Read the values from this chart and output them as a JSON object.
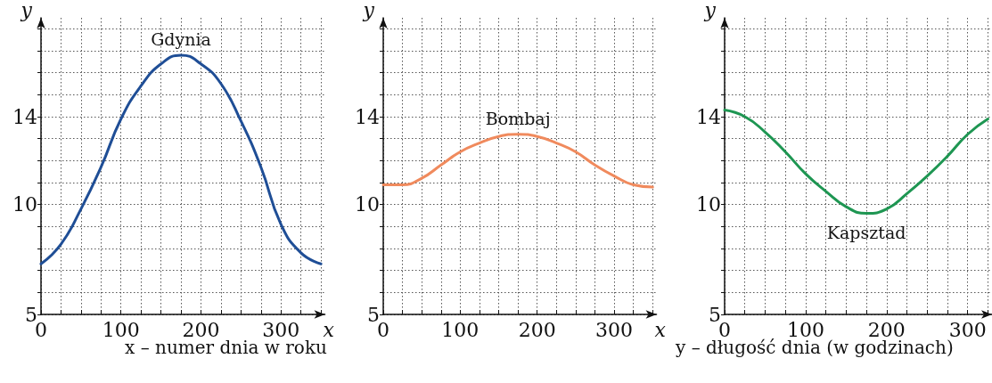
{
  "chart_data": [
    {
      "type": "line",
      "xlabel": "x",
      "ylabel": "y",
      "x": [
        0,
        25,
        50,
        75,
        100,
        125,
        150,
        175,
        200,
        225,
        250,
        275,
        300,
        325,
        350
      ],
      "series": [
        {
          "name": "Gdynia",
          "color": "#1f4e96",
          "values": [
            7.3,
            8.2,
            9.8,
            11.7,
            13.9,
            15.4,
            16.4,
            16.8,
            16.4,
            15.5,
            13.8,
            11.7,
            9.1,
            7.8,
            7.3
          ]
        }
      ],
      "xlim": [
        0,
        355
      ],
      "xticks": [
        0,
        {
          "value": 25,
          "label": null
        },
        {
          "value": 50,
          "label": null
        },
        {
          "value": 75,
          "label": null
        },
        100,
        {
          "value": 125,
          "label": null
        },
        {
          "value": 150,
          "label": null
        },
        {
          "value": 175,
          "label": null
        },
        200,
        {
          "value": 225,
          "label": null
        },
        {
          "value": 250,
          "label": null
        },
        {
          "value": 275,
          "label": null
        },
        300,
        {
          "value": 325,
          "label": null
        },
        {
          "value": 350,
          "label": null
        }
      ],
      "ylim": [
        5,
        18.5
      ],
      "yticks": [
        5,
        {
          "value": 6,
          "label": null
        },
        {
          "value": 7,
          "label": null
        },
        {
          "value": 8,
          "label": null
        },
        {
          "value": 9,
          "label": null
        },
        10,
        {
          "value": 11,
          "label": null
        },
        {
          "value": 12,
          "label": null
        },
        {
          "value": 13,
          "label": null
        },
        14,
        {
          "value": 15,
          "label": null
        },
        {
          "value": 16,
          "label": null
        },
        {
          "value": 17,
          "label": null
        },
        {
          "value": 18,
          "label": null
        }
      ],
      "grid": true,
      "line_style": "solid",
      "annotations": [
        "x – numer dnia w roku"
      ]
    },
    {
      "type": "line",
      "xlabel": "x",
      "ylabel": "y",
      "x": [
        0,
        25,
        50,
        75,
        100,
        125,
        150,
        175,
        200,
        225,
        250,
        275,
        300,
        325,
        350
      ],
      "series": [
        {
          "name": "Bombaj",
          "color": "#f08a5d",
          "values": [
            10.9,
            10.9,
            11.2,
            11.8,
            12.4,
            12.8,
            13.1,
            13.2,
            13.1,
            12.8,
            12.4,
            11.8,
            11.3,
            10.9,
            10.8
          ]
        }
      ],
      "xlim": [
        0,
        355
      ],
      "xticks": [
        0,
        {
          "value": 25,
          "label": null
        },
        {
          "value": 50,
          "label": null
        },
        {
          "value": 75,
          "label": null
        },
        100,
        {
          "value": 125,
          "label": null
        },
        {
          "value": 150,
          "label": null
        },
        {
          "value": 175,
          "label": null
        },
        200,
        {
          "value": 225,
          "label": null
        },
        {
          "value": 250,
          "label": null
        },
        {
          "value": 275,
          "label": null
        },
        300,
        {
          "value": 325,
          "label": null
        },
        {
          "value": 350,
          "label": null
        }
      ],
      "ylim": [
        5,
        18.5
      ],
      "yticks": [
        5,
        {
          "value": 6,
          "label": null
        },
        {
          "value": 7,
          "label": null
        },
        {
          "value": 8,
          "label": null
        },
        {
          "value": 9,
          "label": null
        },
        10,
        {
          "value": 11,
          "label": null
        },
        {
          "value": 12,
          "label": null
        },
        {
          "value": 13,
          "label": null
        },
        14,
        {
          "value": 15,
          "label": null
        },
        {
          "value": 16,
          "label": null
        },
        {
          "value": 17,
          "label": null
        },
        {
          "value": 18,
          "label": null
        }
      ],
      "grid": true,
      "line_style": "solid"
    },
    {
      "type": "line",
      "ylabel": "y",
      "x": [
        0,
        25,
        50,
        75,
        100,
        125,
        150,
        175,
        200,
        225,
        250,
        275,
        300,
        325
      ],
      "series": [
        {
          "name": "Kapsztad",
          "color": "#1e9652",
          "values": [
            14.3,
            14.0,
            13.3,
            12.4,
            11.4,
            10.6,
            9.9,
            9.6,
            9.8,
            10.5,
            11.3,
            12.2,
            13.2,
            13.9
          ]
        }
      ],
      "xlim": [
        0,
        330
      ],
      "xticks": [
        0,
        {
          "value": 25,
          "label": null
        },
        {
          "value": 50,
          "label": null
        },
        {
          "value": 75,
          "label": null
        },
        100,
        {
          "value": 125,
          "label": null
        },
        {
          "value": 150,
          "label": null
        },
        {
          "value": 175,
          "label": null
        },
        200,
        {
          "value": 225,
          "label": null
        },
        {
          "value": 250,
          "label": null
        },
        {
          "value": 275,
          "label": null
        },
        300,
        {
          "value": 325,
          "label": null
        }
      ],
      "ylim": [
        5,
        18.5
      ],
      "yticks": [
        5,
        {
          "value": 6,
          "label": null
        },
        {
          "value": 7,
          "label": null
        },
        {
          "value": 8,
          "label": null
        },
        {
          "value": 9,
          "label": null
        },
        10,
        {
          "value": 11,
          "label": null
        },
        {
          "value": 12,
          "label": null
        },
        {
          "value": 13,
          "label": null
        },
        14,
        {
          "value": 15,
          "label": null
        },
        {
          "value": 16,
          "label": null
        },
        {
          "value": 17,
          "label": null
        },
        {
          "value": 18,
          "label": null
        }
      ],
      "grid": true,
      "line_style": "solid",
      "annotations": [
        "y – długość dnia (w godzinach)"
      ]
    }
  ]
}
